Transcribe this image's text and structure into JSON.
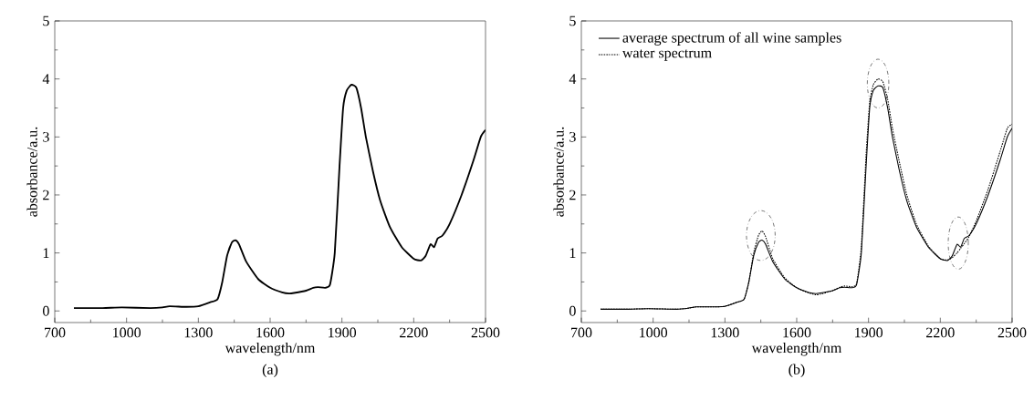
{
  "chart_data": [
    {
      "type": "line",
      "title": "(a)",
      "xlabel": "wavelength/nm",
      "ylabel": "absorbance/a.u.",
      "xlim": [
        700,
        2500
      ],
      "ylim": [
        -0.2,
        5
      ],
      "xticks": [
        700,
        1000,
        1300,
        1600,
        1900,
        2200,
        2500
      ],
      "yticks": [
        0,
        1,
        2,
        3,
        4,
        5
      ],
      "grid": false,
      "legend": false,
      "x": [
        780,
        900,
        980,
        1100,
        1150,
        1180,
        1250,
        1300,
        1350,
        1380,
        1400,
        1420,
        1440,
        1455,
        1470,
        1500,
        1550,
        1600,
        1650,
        1680,
        1700,
        1750,
        1780,
        1800,
        1830,
        1850,
        1870,
        1890,
        1905,
        1920,
        1940,
        1960,
        1980,
        2000,
        2030,
        2060,
        2100,
        2150,
        2200,
        2230,
        2250,
        2270,
        2285,
        2300,
        2320,
        2350,
        2400,
        2450,
        2480,
        2500
      ],
      "series": [
        {
          "color": "#000000",
          "line_style": "solid",
          "values": [
            0.05,
            0.05,
            0.06,
            0.05,
            0.06,
            0.08,
            0.07,
            0.08,
            0.15,
            0.2,
            0.5,
            0.95,
            1.18,
            1.22,
            1.15,
            0.85,
            0.55,
            0.4,
            0.32,
            0.3,
            0.31,
            0.35,
            0.4,
            0.41,
            0.4,
            0.45,
            1.0,
            2.5,
            3.5,
            3.8,
            3.9,
            3.85,
            3.5,
            3.0,
            2.4,
            1.9,
            1.45,
            1.1,
            0.9,
            0.87,
            0.95,
            1.15,
            1.1,
            1.25,
            1.3,
            1.5,
            2.0,
            2.6,
            3.0,
            3.12
          ]
        }
      ]
    },
    {
      "type": "line",
      "title": "(b)",
      "xlabel": "wavelength/nm",
      "ylabel": "absorbance/a.u.",
      "xlim": [
        700,
        2500
      ],
      "ylim": [
        -0.2,
        5
      ],
      "xticks": [
        700,
        1000,
        1300,
        1600,
        1900,
        2200,
        2500
      ],
      "yticks": [
        0,
        1,
        2,
        3,
        4,
        5
      ],
      "grid": false,
      "legend": "top left",
      "x": [
        780,
        900,
        980,
        1100,
        1150,
        1180,
        1250,
        1300,
        1350,
        1380,
        1400,
        1420,
        1440,
        1455,
        1470,
        1500,
        1550,
        1600,
        1650,
        1680,
        1700,
        1750,
        1780,
        1800,
        1830,
        1850,
        1870,
        1890,
        1905,
        1920,
        1940,
        1960,
        1980,
        2000,
        2030,
        2060,
        2100,
        2150,
        2200,
        2230,
        2250,
        2270,
        2285,
        2300,
        2320,
        2350,
        2400,
        2450,
        2480,
        2500
      ],
      "series": [
        {
          "name": "average spectrum of all wine samples",
          "color": "#000000",
          "line_style": "solid",
          "values": [
            0.03,
            0.03,
            0.04,
            0.03,
            0.05,
            0.07,
            0.07,
            0.08,
            0.15,
            0.2,
            0.5,
            0.95,
            1.18,
            1.22,
            1.15,
            0.85,
            0.55,
            0.4,
            0.32,
            0.3,
            0.31,
            0.35,
            0.4,
            0.41,
            0.4,
            0.45,
            1.0,
            2.5,
            3.5,
            3.8,
            3.88,
            3.85,
            3.5,
            3.0,
            2.4,
            1.9,
            1.45,
            1.1,
            0.9,
            0.87,
            0.95,
            1.15,
            1.1,
            1.25,
            1.3,
            1.5,
            2.0,
            2.6,
            3.0,
            3.15
          ]
        },
        {
          "name": "water spectrum",
          "color": "#000000",
          "line_style": "dotted",
          "values": [
            0.03,
            0.03,
            0.04,
            0.03,
            0.05,
            0.07,
            0.07,
            0.08,
            0.15,
            0.2,
            0.5,
            1.0,
            1.3,
            1.38,
            1.28,
            0.9,
            0.57,
            0.4,
            0.31,
            0.28,
            0.29,
            0.35,
            0.41,
            0.43,
            0.42,
            0.47,
            1.1,
            2.7,
            3.6,
            3.9,
            4.0,
            3.95,
            3.65,
            3.15,
            2.55,
            2.0,
            1.5,
            1.12,
            0.9,
            0.88,
            0.92,
            1.0,
            1.08,
            1.16,
            1.28,
            1.55,
            2.1,
            2.75,
            3.15,
            3.22
          ]
        }
      ]
    }
  ]
}
